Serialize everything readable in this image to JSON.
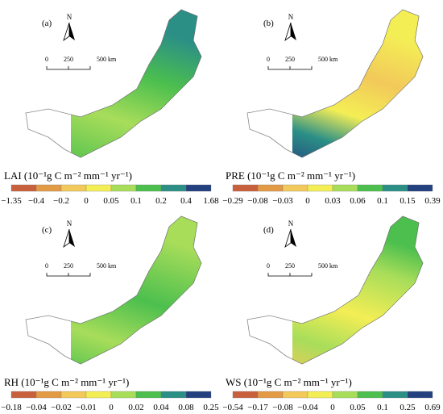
{
  "colors": [
    "#c9603d",
    "#e39a45",
    "#f2c95a",
    "#f4ee55",
    "#a8dd5a",
    "#4cbf4e",
    "#2b8f86",
    "#23407f"
  ],
  "panels": [
    {
      "label": "(a)",
      "north": "N",
      "scale": [
        "0",
        "250",
        "500 km"
      ],
      "legend_title": "LAI (10⁻¹g C m⁻² mm⁻¹ yr⁻¹)",
      "ticks": [
        "−1.35",
        "−0.4",
        "−0.2",
        "0",
        "0.05",
        "0.1",
        "0.2",
        "0.4",
        "1.68"
      ]
    },
    {
      "label": "(b)",
      "north": "N",
      "scale": [
        "0",
        "250",
        "500 km"
      ],
      "legend_title": "PRE (10⁻¹g C m⁻² mm⁻¹ yr⁻¹)",
      "ticks": [
        "−0.29",
        "−0.08",
        "−0.03",
        "0",
        "0.03",
        "0.06",
        "0.1",
        "0.15",
        "0.39"
      ]
    },
    {
      "label": "(c)",
      "north": "N",
      "scale": [
        "0",
        "250",
        "500 km"
      ],
      "legend_title": "RH (10⁻¹g C m⁻² mm⁻¹ yr⁻¹)",
      "ticks": [
        "−0.18",
        "−0.04",
        "−0.02",
        "−0.01",
        "0",
        "0.02",
        "0.04",
        "0.08",
        "0.25"
      ]
    },
    {
      "label": "(d)",
      "north": "N",
      "scale": [
        "0",
        "250",
        "500 km"
      ],
      "legend_title": "WS (10⁻¹g C m⁻² mm⁻¹ yr⁻¹)",
      "ticks": [
        "−0.54",
        "−0.17",
        "−0.08",
        "−0.04",
        "0",
        "0.05",
        "0.1",
        "0.25",
        "0.69"
      ]
    }
  ]
}
